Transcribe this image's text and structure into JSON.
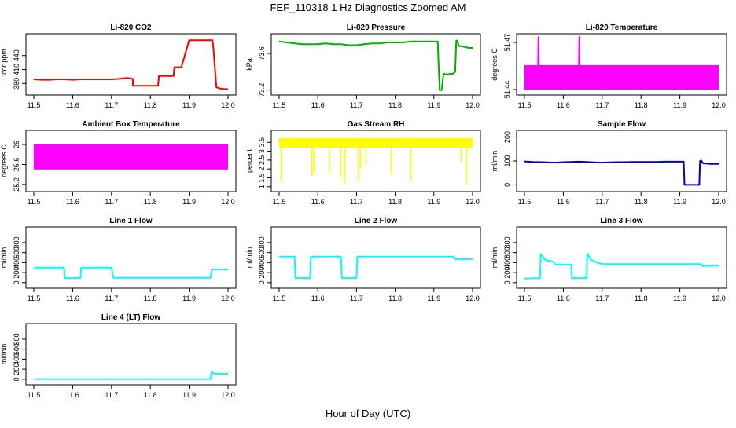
{
  "page": {
    "title": "FEF_110318  1 Hz Diagnostics Zoomed AM",
    "xlabel": "Hour of Day (UTC)"
  },
  "chart_data": [
    {
      "type": "line",
      "title": "Li-820 CO2",
      "ylabel": "Licor ppm",
      "color": "#ff0000",
      "xlim": [
        11.5,
        12.0
      ],
      "xticks": [
        11.5,
        11.6,
        11.7,
        11.8,
        11.9,
        12.0
      ],
      "ylim": [
        362,
        480
      ],
      "yticks": [
        380,
        410,
        440
      ],
      "series": [
        {
          "x": [
            11.5,
            11.52,
            11.54,
            11.56,
            11.58,
            11.6,
            11.62,
            11.64,
            11.66,
            11.68,
            11.7,
            11.72,
            11.74,
            11.755,
            11.755,
            11.78,
            11.8,
            11.82,
            11.822,
            11.84,
            11.86,
            11.862,
            11.88,
            11.9,
            11.92,
            11.94,
            11.96,
            11.962,
            11.97,
            11.98,
            11.99,
            12.0
          ],
          "y": [
            389,
            388,
            388,
            389,
            389,
            388,
            389,
            389,
            389,
            389,
            389,
            390,
            392,
            390,
            375,
            375,
            375,
            375,
            396,
            396,
            396,
            415,
            415,
            473,
            473,
            473,
            473,
            460,
            372,
            369,
            368,
            368
          ]
        }
      ]
    },
    {
      "type": "line",
      "title": "Li-820 Pressure",
      "ylabel": "kPa",
      "color": "#00b000",
      "xlim": [
        11.5,
        12.0
      ],
      "xticks": [
        11.5,
        11.6,
        11.7,
        11.8,
        11.9,
        12.0
      ],
      "ylim": [
        73.18,
        73.78
      ],
      "yticks": [
        73.2,
        73.6
      ],
      "series": [
        {
          "x": [
            11.5,
            11.52,
            11.54,
            11.56,
            11.58,
            11.6,
            11.62,
            11.64,
            11.66,
            11.68,
            11.7,
            11.72,
            11.74,
            11.76,
            11.78,
            11.8,
            11.82,
            11.84,
            11.86,
            11.88,
            11.9,
            11.91,
            11.912,
            11.915,
            11.918,
            11.92,
            11.925,
            11.93,
            11.95,
            11.955,
            11.958,
            11.96,
            11.965,
            11.97,
            11.98,
            11.99,
            12.0
          ],
          "y": [
            73.73,
            73.72,
            73.71,
            73.7,
            73.7,
            73.7,
            73.71,
            73.7,
            73.7,
            73.69,
            73.69,
            73.7,
            73.71,
            73.71,
            73.72,
            73.72,
            73.72,
            73.73,
            73.73,
            73.73,
            73.73,
            73.73,
            73.5,
            73.2,
            73.2,
            73.2,
            73.38,
            73.37,
            73.38,
            73.4,
            73.74,
            73.74,
            73.68,
            73.68,
            73.67,
            73.66,
            73.66
          ]
        }
      ]
    },
    {
      "type": "line",
      "title": "Li-820 Temperature",
      "ylabel": "degrees C",
      "color": "#ff00ff",
      "xlim": [
        11.5,
        12.0
      ],
      "xticks": [
        11.5,
        11.6,
        11.7,
        11.8,
        11.9,
        12.0
      ],
      "ylim": [
        51.4385,
        51.4735
      ],
      "yticks": [
        51.44,
        51.47
      ],
      "series": [
        {
          "x": [
            11.5,
            11.535,
            11.536,
            11.537,
            11.64,
            11.641,
            11.642,
            12.0
          ],
          "y": [
            51.455,
            51.455,
            51.4735,
            51.455,
            51.455,
            51.4735,
            51.455,
            51.455
          ]
        }
      ],
      "band": [
        51.44,
        51.455
      ]
    },
    {
      "type": "line",
      "title": "Ambient Box Temperature",
      "ylabel": "degrees C",
      "color": "#ff00ff",
      "xlim": [
        11.5,
        12.0
      ],
      "xticks": [
        11.5,
        11.6,
        11.7,
        11.8,
        11.9,
        12.0
      ],
      "ylim": [
        25.12,
        26.22
      ],
      "yticks": [
        25.2,
        25.6,
        26.0
      ],
      "series": [
        {
          "x": [
            11.5,
            11.53,
            11.56,
            11.58,
            11.6,
            11.63,
            11.66,
            11.68,
            11.7,
            11.73,
            11.76,
            11.78,
            11.8,
            11.83,
            11.86,
            11.88,
            11.9,
            11.93,
            11.96,
            11.98,
            12.0
          ],
          "y": [
            25.75,
            25.8,
            25.72,
            25.78,
            25.7,
            25.74,
            25.76,
            25.8,
            25.72,
            25.74,
            25.73,
            25.76,
            25.74,
            25.78,
            25.73,
            25.75,
            25.74,
            25.76,
            25.74,
            25.75,
            25.76
          ]
        }
      ],
      "band": [
        25.5,
        26.0
      ]
    },
    {
      "type": "line",
      "title": "Gas Stream RH",
      "ylabel": "percent",
      "color": "#ffff00",
      "xlim": [
        11.5,
        12.0
      ],
      "xticks": [
        11.5,
        11.6,
        11.7,
        11.8,
        11.9,
        12.0
      ],
      "ylim": [
        0.9,
        4.0
      ],
      "yticks": [
        1.0,
        1.5,
        2.0,
        2.5,
        3.0,
        3.5
      ],
      "series": [
        {
          "x": [
            11.5,
            11.52,
            11.54,
            11.56,
            11.58,
            11.6,
            11.62,
            11.64,
            11.66,
            11.68,
            11.7,
            11.72,
            11.74,
            11.76,
            11.78,
            11.8,
            11.82,
            11.84,
            11.86,
            11.88,
            11.9,
            11.92,
            11.94,
            11.96,
            11.98,
            12.0
          ],
          "y": [
            3.5,
            3.55,
            3.5,
            3.55,
            3.5,
            3.55,
            3.5,
            3.55,
            3.5,
            3.55,
            3.5,
            3.55,
            3.5,
            3.55,
            3.5,
            3.55,
            3.5,
            3.55,
            3.5,
            3.55,
            3.5,
            3.55,
            3.5,
            3.55,
            3.5,
            3.5
          ]
        }
      ],
      "band": [
        3.2,
        3.75
      ],
      "spikes": {
        "x": [
          11.505,
          11.585,
          11.59,
          11.63,
          11.66,
          11.67,
          11.705,
          11.71,
          11.725,
          11.79,
          11.84,
          11.97,
          11.985
        ],
        "y": [
          1.3,
          1.6,
          1.8,
          1.8,
          1.5,
          1.2,
          1.3,
          2.0,
          2.2,
          1.7,
          1.3,
          2.4,
          1.1
        ]
      }
    },
    {
      "type": "line",
      "title": "Sample Flow",
      "ylabel": "ml/min",
      "color": "#0000c0",
      "xlim": [
        11.5,
        12.0
      ],
      "xticks": [
        11.5,
        11.6,
        11.7,
        11.8,
        11.9,
        12.0
      ],
      "ylim": [
        -15,
        215
      ],
      "yticks": [
        0,
        100,
        200
      ],
      "series": [
        {
          "x": [
            11.5,
            11.52,
            11.54,
            11.56,
            11.58,
            11.6,
            11.62,
            11.64,
            11.66,
            11.68,
            11.7,
            11.72,
            11.74,
            11.76,
            11.78,
            11.8,
            11.82,
            11.84,
            11.86,
            11.88,
            11.9,
            11.91,
            11.912,
            11.92,
            11.94,
            11.95,
            11.952,
            11.955,
            11.96,
            11.98,
            12.0
          ],
          "y": [
            98,
            96,
            95,
            94,
            93,
            95,
            96,
            97,
            96,
            94,
            93,
            94,
            95,
            95,
            96,
            96,
            96,
            96,
            97,
            97,
            97,
            97,
            0,
            0,
            0,
            0,
            100,
            102,
            90,
            88,
            88
          ]
        }
      ]
    },
    {
      "type": "line",
      "title": "Line 1 Flow",
      "ylabel": "ml/min",
      "color": "#00ffff",
      "xlim": [
        11.5,
        12.0
      ],
      "xticks": [
        11.5,
        11.6,
        11.7,
        11.8,
        11.9,
        12.0
      ],
      "ylim": [
        -50,
        1050
      ],
      "yticks": [
        0,
        200,
        400,
        600,
        800
      ],
      "series": [
        {
          "x": [
            11.5,
            11.54,
            11.578,
            11.58,
            11.62,
            11.622,
            11.66,
            11.7,
            11.705,
            11.75,
            11.8,
            11.85,
            11.9,
            11.955,
            11.958,
            11.98,
            12.0
          ],
          "y": [
            300,
            300,
            300,
            90,
            90,
            300,
            300,
            300,
            95,
            95,
            95,
            95,
            95,
            95,
            260,
            265,
            265
          ]
        }
      ]
    },
    {
      "type": "line",
      "title": "Line 2 Flow",
      "ylabel": "ml/min",
      "color": "#00ffff",
      "xlim": [
        11.5,
        12.0
      ],
      "xticks": [
        11.5,
        11.6,
        11.7,
        11.8,
        11.9,
        12.0
      ],
      "ylim": [
        -50,
        1050
      ],
      "yticks": [
        0,
        200,
        400,
        600,
        800
      ],
      "series": [
        {
          "x": [
            11.5,
            11.54,
            11.542,
            11.58,
            11.582,
            11.62,
            11.66,
            11.662,
            11.7,
            11.702,
            11.75,
            11.8,
            11.85,
            11.9,
            11.95,
            11.955,
            11.98,
            12.0
          ],
          "y": [
            520,
            520,
            90,
            90,
            520,
            520,
            520,
            90,
            90,
            520,
            520,
            520,
            520,
            520,
            520,
            470,
            470,
            470
          ]
        }
      ]
    },
    {
      "type": "line",
      "title": "Line 3 Flow",
      "ylabel": "ml/min",
      "color": "#00ffff",
      "xlim": [
        11.5,
        12.0
      ],
      "xticks": [
        11.5,
        11.6,
        11.7,
        11.8,
        11.9,
        12.0
      ],
      "ylim": [
        -50,
        1050
      ],
      "yticks": [
        0,
        200,
        400,
        600,
        800
      ],
      "series": [
        {
          "x": [
            11.5,
            11.52,
            11.54,
            11.542,
            11.55,
            11.56,
            11.575,
            11.578,
            11.6,
            11.62,
            11.622,
            11.66,
            11.662,
            11.67,
            11.68,
            11.7,
            11.75,
            11.8,
            11.85,
            11.9,
            11.955,
            11.958,
            11.98,
            12.0
          ],
          "y": [
            80,
            85,
            90,
            570,
            480,
            440,
            420,
            360,
            360,
            360,
            90,
            90,
            580,
            470,
            420,
            370,
            370,
            370,
            370,
            370,
            370,
            330,
            340,
            340
          ]
        }
      ]
    },
    {
      "type": "line",
      "title": "Line 4 (LT) Flow",
      "ylabel": "ml/min",
      "color": "#00ffff",
      "xlim": [
        11.5,
        12.0
      ],
      "xticks": [
        11.5,
        11.6,
        11.7,
        11.8,
        11.9,
        12.0
      ],
      "ylim": [
        -50,
        1050
      ],
      "yticks": [
        0,
        200,
        400,
        600,
        800
      ],
      "series": [
        {
          "x": [
            11.5,
            11.6,
            11.7,
            11.8,
            11.9,
            11.955,
            11.958,
            11.962,
            11.98,
            12.0
          ],
          "y": [
            0,
            0,
            0,
            0,
            0,
            0,
            160,
            110,
            105,
            105
          ]
        }
      ]
    }
  ]
}
